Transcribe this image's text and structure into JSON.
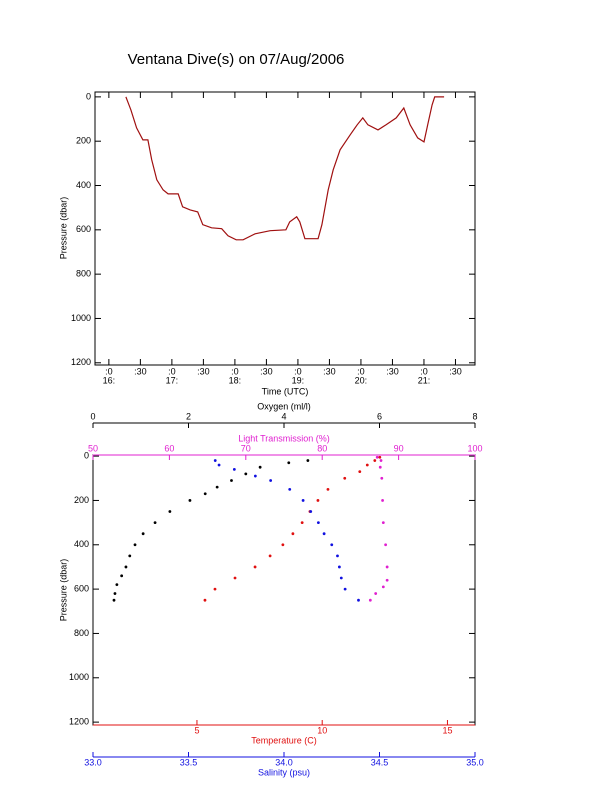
{
  "chart_data": [
    {
      "type": "line",
      "title": "Ventana Dive(s) on 07/Aug/2006",
      "xlabel": "Time (UTC)",
      "ylabel": "Pressure (dbar)",
      "xlim": [
        15.78,
        21.81
      ],
      "ylim": [
        1210,
        -22
      ],
      "xticks": [
        {
          "value": 16,
          "label": ":0"
        },
        {
          "value": 16.5,
          "label": ":30"
        },
        {
          "value": 17,
          "label": ":0"
        },
        {
          "value": 17.5,
          "label": ":30"
        },
        {
          "value": 18,
          "label": ":0"
        },
        {
          "value": 18.5,
          "label": ":30"
        },
        {
          "value": 19,
          "label": ":0"
        },
        {
          "value": 19.5,
          "label": ":30"
        },
        {
          "value": 20,
          "label": ":0"
        },
        {
          "value": 20.5,
          "label": ":30"
        },
        {
          "value": 21,
          "label": ":0"
        },
        {
          "value": 21.5,
          "label": ":30"
        }
      ],
      "xtick_hour_labels": [
        {
          "value": 16,
          "label": "16:"
        },
        {
          "value": 17,
          "label": "17:"
        },
        {
          "value": 18,
          "label": "18:"
        },
        {
          "value": 19,
          "label": "19:"
        },
        {
          "value": 20,
          "label": "20:"
        },
        {
          "value": 21,
          "label": "21:"
        }
      ],
      "yticks": [
        0,
        200,
        400,
        600,
        800,
        1000,
        1200
      ],
      "color": "#a01010",
      "x": [
        16.27,
        16.35,
        16.44,
        16.54,
        16.62,
        16.68,
        16.76,
        16.86,
        16.94,
        17.1,
        17.17,
        17.29,
        17.41,
        17.49,
        17.63,
        17.79,
        17.89,
        18.02,
        18.13,
        18.32,
        18.56,
        18.81,
        18.87,
        18.98,
        19.03,
        19.11,
        19.32,
        19.38,
        19.48,
        19.56,
        19.67,
        19.83,
        19.94,
        20.03,
        20.11,
        20.27,
        20.4,
        20.56,
        20.68,
        20.78,
        20.9,
        21.0,
        21.06,
        21.13,
        21.17,
        21.32
      ],
      "values": [
        0,
        59,
        140,
        194,
        194,
        284,
        374,
        420,
        438,
        438,
        496,
        510,
        519,
        577,
        591,
        595,
        627,
        645,
        645,
        618,
        604,
        600,
        564,
        541,
        564,
        640,
        640,
        577,
        420,
        329,
        239,
        171,
        126,
        95,
        126,
        149,
        126,
        95,
        50,
        126,
        185,
        203,
        126,
        36,
        0,
        0
      ]
    },
    {
      "type": "scatter",
      "ylabel": "Pressure (dbar)",
      "ylim": [
        1213,
        -5
      ],
      "yticks": [
        0,
        200,
        400,
        600,
        800,
        1000,
        1200
      ],
      "series": [
        {
          "name": "Oxygen (ml/l)",
          "color": "#000000",
          "axis_position": "top-outer",
          "xlim": [
            0,
            8
          ],
          "xticks": [
            0,
            2,
            4,
            6,
            8
          ],
          "x": [
            0.44,
            0.46,
            0.5,
            0.6,
            0.69,
            0.77,
            0.88,
            1.05,
            1.3,
            1.61,
            2.03,
            2.35,
            2.6,
            2.9,
            3.2,
            3.5,
            4.1,
            4.5
          ],
          "y": [
            650,
            620,
            580,
            540,
            500,
            450,
            400,
            350,
            300,
            250,
            200,
            170,
            140,
            110,
            80,
            50,
            30,
            20
          ]
        },
        {
          "name": "Light Transmission (%)",
          "color": "#e020d0",
          "axis_position": "top",
          "xlim": [
            50,
            100
          ],
          "xticks": [
            50,
            60,
            70,
            80,
            90,
            100
          ],
          "x": [
            86.3,
            87.0,
            88.0,
            88.5,
            88.5,
            88.3,
            88.0,
            87.9,
            87.8,
            87.6,
            87.7,
            87.2
          ],
          "y": [
            650,
            620,
            590,
            560,
            500,
            400,
            300,
            200,
            100,
            50,
            20,
            5
          ]
        },
        {
          "name": "Temperature (C)",
          "color": "#e01010",
          "axis_position": "bottom",
          "xlim": [
            0.85,
            16.1
          ],
          "xticks": [
            5,
            10,
            15
          ],
          "x": [
            5.32,
            5.72,
            6.52,
            7.32,
            7.92,
            8.43,
            8.83,
            9.2,
            9.51,
            9.83,
            10.23,
            10.9,
            11.5,
            11.8,
            12.1,
            12.3
          ],
          "y": [
            650,
            600,
            550,
            500,
            450,
            400,
            350,
            300,
            250,
            200,
            150,
            100,
            70,
            40,
            20,
            5
          ]
        },
        {
          "name": "Salinity (psu)",
          "color": "#1010e0",
          "axis_position": "bottom-outer",
          "xlim": [
            33,
            35
          ],
          "xticks": [
            {
              "value": 33,
              "label": "33.0"
            },
            33.5,
            {
              "value": 34,
              "label": "34.0"
            },
            34.5,
            {
              "value": 35,
              "label": "35.0"
            }
          ],
          "x": [
            34.39,
            34.32,
            34.3,
            34.29,
            34.28,
            34.25,
            34.21,
            34.18,
            34.14,
            34.1,
            34.03,
            33.93,
            33.85,
            33.74,
            33.66,
            33.64
          ],
          "y": [
            650,
            600,
            550,
            500,
            450,
            400,
            350,
            300,
            250,
            200,
            150,
            110,
            90,
            60,
            40,
            20
          ]
        }
      ]
    }
  ]
}
